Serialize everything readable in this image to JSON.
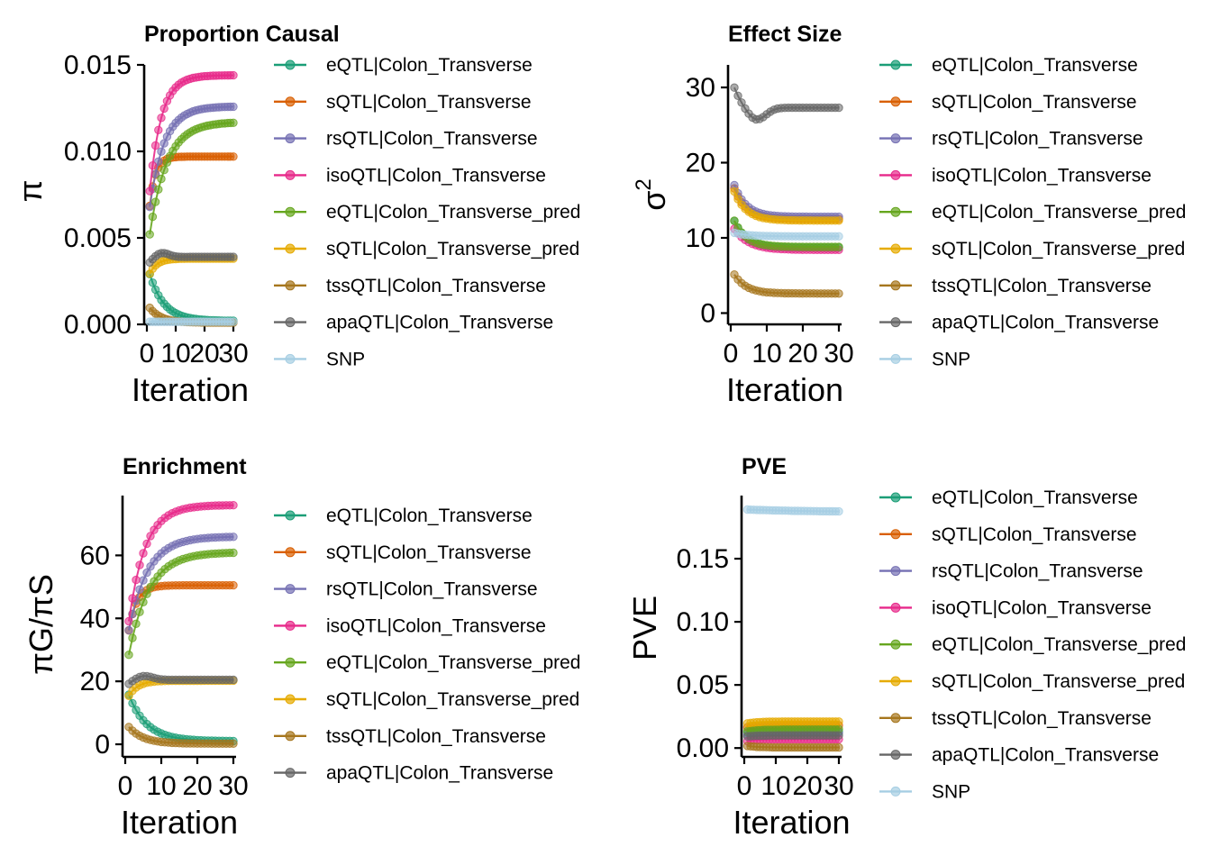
{
  "colors": {
    "eQTL|Colon_Transverse": "#1b9e77",
    "sQTL|Colon_Transverse": "#d95f02",
    "rsQTL|Colon_Transverse": "#7570b3",
    "isoQTL|Colon_Transverse": "#e7298a",
    "eQTL|Colon_Transverse_pred": "#66a61e",
    "sQTL|Colon_Transverse_pred": "#e6ab02",
    "tssQTL|Colon_Transverse": "#a6761d",
    "apaQTL|Colon_Transverse": "#666666",
    "SNP": "#a6cee3"
  },
  "chart_data": [
    {
      "type": "line",
      "title": "Proportion Causal",
      "xlabel": "Iteration",
      "ylabel": "π",
      "ylabel_math": "pi",
      "xlim": [
        0,
        30
      ],
      "xticks": [
        "0",
        "10",
        "20",
        "30"
      ],
      "ylim": [
        0,
        0.015
      ],
      "yticks": [
        "0.000",
        "0.005",
        "0.010",
        "0.015"
      ],
      "yticks_values": [
        0,
        0.005,
        0.01,
        0.015
      ],
      "markers": true,
      "legend_position": "right",
      "series": [
        {
          "name": "eQTL|Colon_Transverse",
          "start": 0.0035,
          "end": 0.0002,
          "rate": 0.2
        },
        {
          "name": "sQTL|Colon_Transverse",
          "start": 0.005,
          "end": 0.0097,
          "rate": 0.5
        },
        {
          "name": "rsQTL|Colon_Transverse",
          "start": 0.0055,
          "end": 0.0126,
          "rate": 0.2
        },
        {
          "name": "isoQTL|Colon_Transverse",
          "start": 0.0058,
          "end": 0.0144,
          "rate": 0.25
        },
        {
          "name": "eQTL|Colon_Transverse_pred",
          "start": 0.004,
          "end": 0.0117,
          "rate": 0.17
        },
        {
          "name": "sQTL|Colon_Transverse_pred",
          "start": 0.0025,
          "end": 0.0038,
          "rate": 0.4
        },
        {
          "name": "tssQTL|Colon_Transverse",
          "start": 0.0012,
          "end": 0.0001,
          "rate": 0.25
        },
        {
          "name": "apaQTL|Colon_Transverse",
          "start": 0.0033,
          "end": 0.0039,
          "rate": 0.4,
          "bump": 0.0003
        },
        {
          "name": "SNP",
          "start": 0.00015,
          "end": 0.00015,
          "rate": 0.3
        }
      ]
    },
    {
      "type": "line",
      "title": "Effect Size",
      "xlabel": "Iteration",
      "ylabel": "σ",
      "ylabel_sup": "2",
      "ylabel_math": "sigma^2",
      "xlim": [
        0,
        30
      ],
      "xticks": [
        "0",
        "10",
        "20",
        "30"
      ],
      "ylim": [
        -1.5,
        33
      ],
      "yticks": [
        "0",
        "10",
        "20",
        "30"
      ],
      "yticks_values": [
        0,
        10,
        20,
        30
      ],
      "markers": true,
      "legend_position": "right",
      "series": [
        {
          "name": "eQTL|Colon_Transverse",
          "start": 13.5,
          "end": 8.7,
          "rate": 0.3
        },
        {
          "name": "sQTL|Colon_Transverse",
          "start": 18.0,
          "end": 12.5,
          "rate": 0.3
        },
        {
          "name": "rsQTL|Colon_Transverse",
          "start": 18.5,
          "end": 12.8,
          "rate": 0.3
        },
        {
          "name": "isoQTL|Colon_Transverse",
          "start": 12.0,
          "end": 8.4,
          "rate": 0.25
        },
        {
          "name": "eQTL|Colon_Transverse_pred",
          "start": 13.5,
          "end": 8.8,
          "rate": 0.3
        },
        {
          "name": "sQTL|Colon_Transverse_pred",
          "start": 17.5,
          "end": 12.3,
          "rate": 0.3
        },
        {
          "name": "tssQTL|Colon_Transverse",
          "start": 6.0,
          "end": 2.6,
          "rate": 0.3
        },
        {
          "name": "apaQTL|Colon_Transverse",
          "start": 31.5,
          "end": 27.3,
          "rate": 0.4,
          "dip": 1.8
        },
        {
          "name": "SNP",
          "start": 10.8,
          "end": 10.2,
          "rate": 0.25
        }
      ]
    },
    {
      "type": "line",
      "title": "Enrichment",
      "xlabel": "Iteration",
      "ylabel": "πG/πS",
      "ylabel_math": "pi_G/pi_S",
      "xlim": [
        0,
        30
      ],
      "xticks": [
        "0",
        "10",
        "20",
        "30"
      ],
      "ylim": [
        -4,
        79
      ],
      "yticks": [
        "0",
        "20",
        "40",
        "60"
      ],
      "yticks_values": [
        0,
        20,
        40,
        60
      ],
      "markers": true,
      "legend_position": "right",
      "series": [
        {
          "name": "eQTL|Colon_Transverse",
          "start": 19.0,
          "end": 1.0,
          "rate": 0.2
        },
        {
          "name": "sQTL|Colon_Transverse",
          "start": 28.0,
          "end": 50.5,
          "rate": 0.45
        },
        {
          "name": "rsQTL|Colon_Transverse",
          "start": 30.0,
          "end": 66.0,
          "rate": 0.19
        },
        {
          "name": "isoQTL|Colon_Transverse",
          "start": 30.0,
          "end": 76.0,
          "rate": 0.22
        },
        {
          "name": "eQTL|Colon_Transverse_pred",
          "start": 22.0,
          "end": 61.0,
          "rate": 0.18
        },
        {
          "name": "sQTL|Colon_Transverse_pred",
          "start": 13.0,
          "end": 20.2,
          "rate": 0.4
        },
        {
          "name": "tssQTL|Colon_Transverse",
          "start": 7.0,
          "end": 0.2,
          "rate": 0.25
        },
        {
          "name": "apaQTL|Colon_Transverse",
          "start": 18.0,
          "end": 20.5,
          "rate": 0.4,
          "bump": 1.5
        }
      ]
    },
    {
      "type": "line",
      "title": "PVE",
      "xlabel": "Iteration",
      "ylabel": "PVE",
      "xlim": [
        0,
        30
      ],
      "xticks": [
        "0",
        "10",
        "20",
        "30"
      ],
      "ylim": [
        -0.007,
        0.2
      ],
      "yticks": [
        "0.00",
        "0.05",
        "0.10",
        "0.15"
      ],
      "yticks_values": [
        0,
        0.05,
        0.1,
        0.15
      ],
      "markers": true,
      "legend_position": "right",
      "series": [
        {
          "name": "eQTL|Colon_Transverse",
          "start": 0.012,
          "end": 0.013,
          "rate": 0.3
        },
        {
          "name": "sQTL|Colon_Transverse",
          "start": 0.016,
          "end": 0.018,
          "rate": 0.3
        },
        {
          "name": "rsQTL|Colon_Transverse",
          "start": 0.01,
          "end": 0.012,
          "rate": 0.3
        },
        {
          "name": "isoQTL|Colon_Transverse",
          "start": 0.005,
          "end": 0.007,
          "rate": 0.3
        },
        {
          "name": "eQTL|Colon_Transverse_pred",
          "start": 0.013,
          "end": 0.015,
          "rate": 0.3
        },
        {
          "name": "sQTL|Colon_Transverse_pred",
          "start": 0.019,
          "end": 0.021,
          "rate": 0.3
        },
        {
          "name": "tssQTL|Colon_Transverse",
          "start": 0.002,
          "end": 0.0005,
          "rate": 0.3
        },
        {
          "name": "apaQTL|Colon_Transverse",
          "start": 0.009,
          "end": 0.01,
          "rate": 0.3
        },
        {
          "name": "SNP",
          "start": 0.189,
          "end": 0.187,
          "rate": 0.05
        }
      ]
    }
  ]
}
